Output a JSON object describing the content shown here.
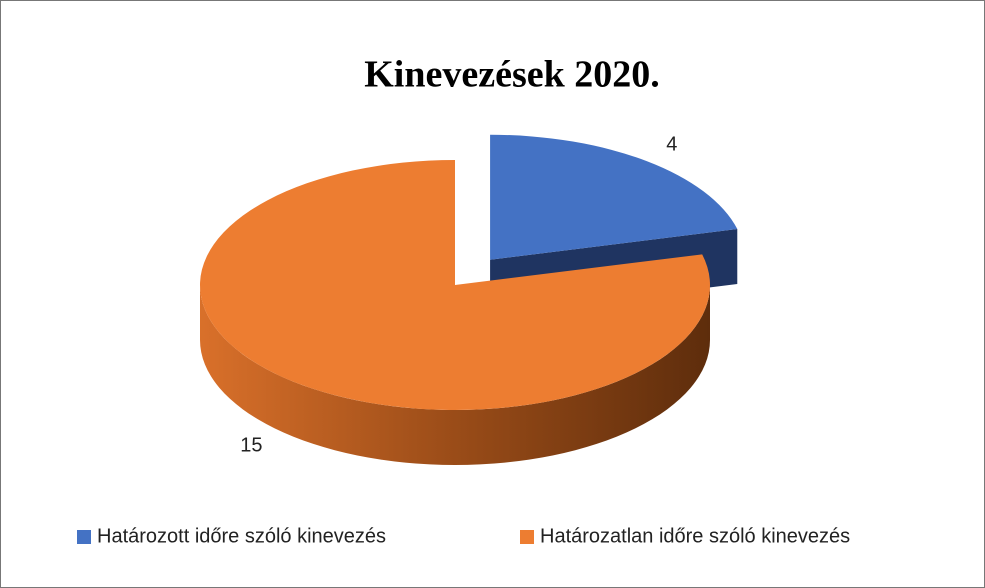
{
  "chart_data": {
    "type": "pie",
    "title": "Kinevezések 2020.",
    "categories": [
      "Határozott időre szóló kinevezés",
      "Határozatlan időre szóló kinevezés"
    ],
    "values": [
      4,
      15
    ],
    "colors": [
      "#4472c4",
      "#ed7d31"
    ]
  }
}
